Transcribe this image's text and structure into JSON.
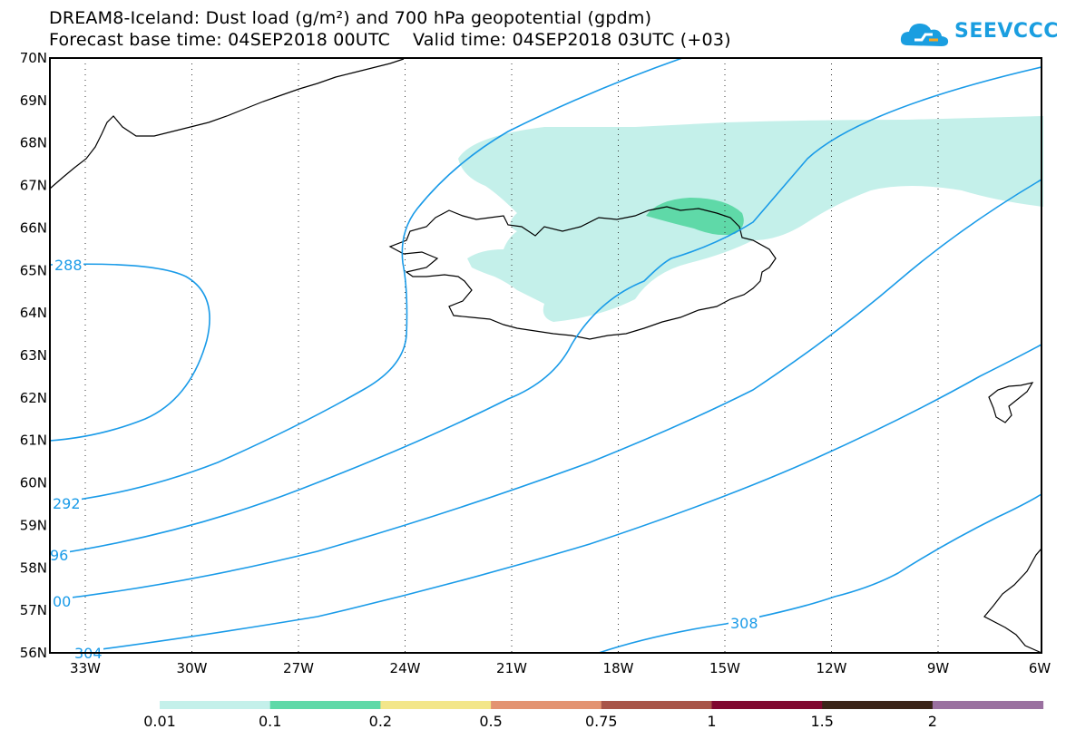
{
  "header": {
    "title_line1": "DREAM8-Iceland: Dust load (g/m²) and 700 hPa geopotential (gpdm)",
    "title_line2": "Forecast base time: 04SEP2018 00UTC    Valid time: 04SEP2018 03UTC (+03)"
  },
  "logo": {
    "text": "SEEVCCC",
    "color": "#1a9ee0",
    "icon": "cloud-icon"
  },
  "map": {
    "lat_labels": [
      "70N",
      "69N",
      "68N",
      "67N",
      "66N",
      "65N",
      "64N",
      "63N",
      "62N",
      "61N",
      "60N",
      "59N",
      "58N",
      "57N",
      "56N"
    ],
    "lon_labels": [
      "33W",
      "30W",
      "27W",
      "24W",
      "21W",
      "18W",
      "15W",
      "12W",
      "9W",
      "6W"
    ],
    "contour_color": "#1a9be8",
    "contour_labels": [
      "288",
      "292",
      "96",
      "00",
      "304",
      "308"
    ]
  },
  "colorbar": {
    "labels": [
      "0.01",
      "0.1",
      "0.2",
      "0.5",
      "0.75",
      "1",
      "1.5",
      "2"
    ],
    "colors": [
      "#c4f0ea",
      "#5fd9a8",
      "#f3e68a",
      "#e39371",
      "#a85448",
      "#800830",
      "#3a2418",
      "#9a70a0"
    ]
  }
}
